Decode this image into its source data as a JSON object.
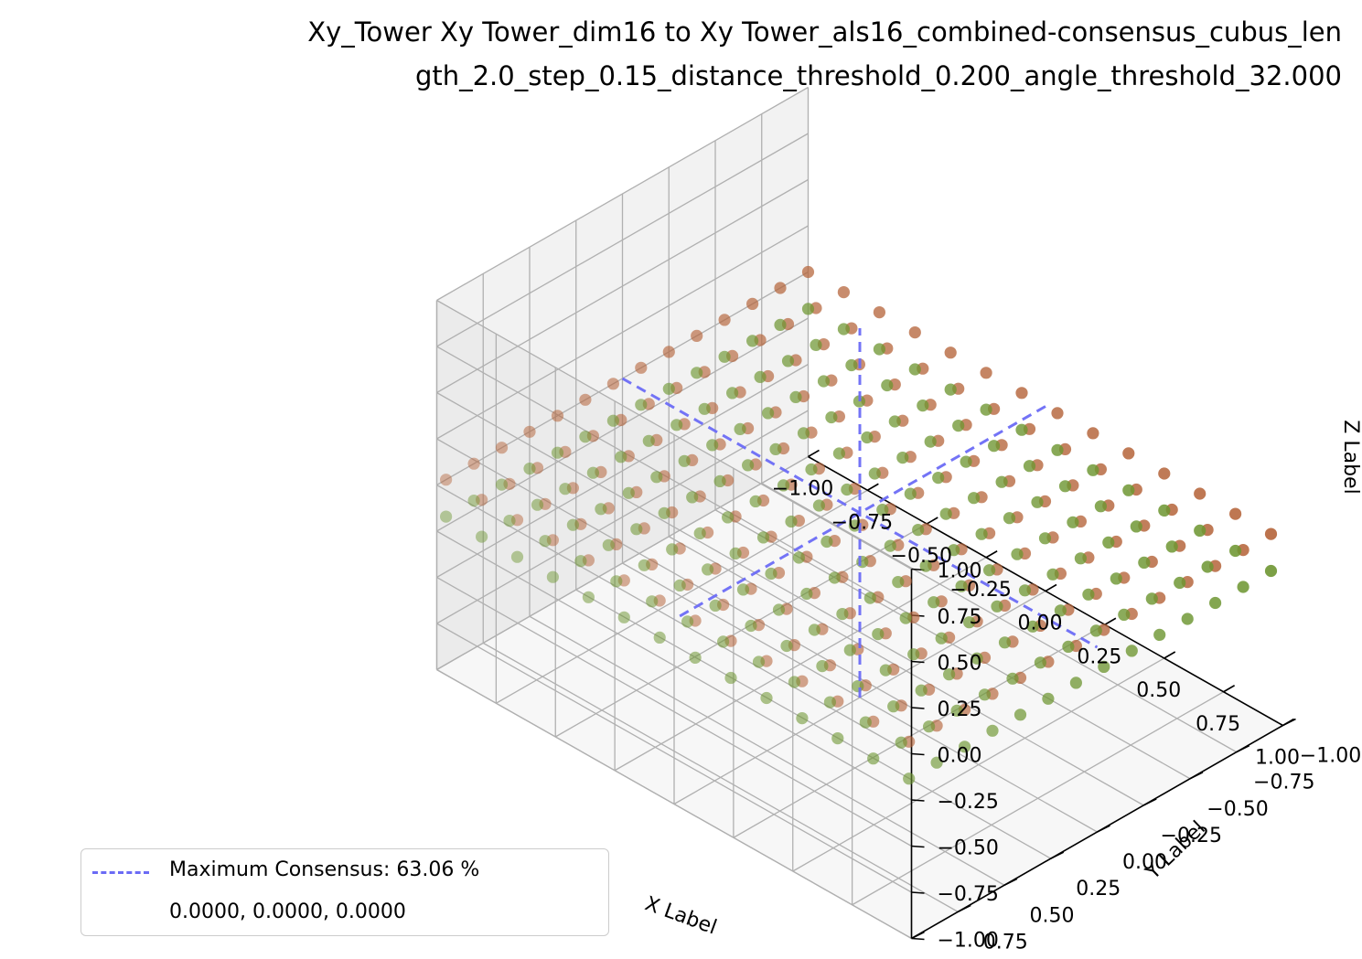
{
  "chart_data": {
    "type": "scatter",
    "title_line1": "Xy_Tower Xy Tower_dim16 to Xy Tower_als16_combined-consensus_cubus_len",
    "title_line2": "gth_2.0_step_0.15_distance_threshold_0.200_angle_threshold_32.000",
    "xlabel": "X Label",
    "ylabel": "Y Label",
    "zlabel": "Z Label",
    "xlim": [
      -1.0,
      1.0
    ],
    "ylim": [
      -1.0,
      1.0
    ],
    "zlim": [
      -1.0,
      1.0
    ],
    "x_ticks": [
      "−1.00",
      "−0.75",
      "−0.50",
      "−0.25",
      "0.00",
      "0.25",
      "0.50",
      "0.75",
      "1.00"
    ],
    "y_ticks": [
      "−1.00",
      "−0.75",
      "−0.50",
      "−0.25",
      "0.00",
      "0.25",
      "0.50",
      "0.75",
      "1.00"
    ],
    "z_ticks": [
      "−1.00",
      "−0.75",
      "−0.50",
      "−0.25",
      "0.00",
      "0.25",
      "0.50",
      "0.75",
      "1.00"
    ],
    "grid": true,
    "series": [
      {
        "kind": "points",
        "color": "#b5643a",
        "grid_min": -1.0,
        "grid_max": 1.0,
        "grid_step": 0.15,
        "z": 0.0
      },
      {
        "kind": "points",
        "color": "#6e9632",
        "grid_min": -1.0,
        "grid_max": 1.0,
        "grid_step": 0.15,
        "z": -0.2
      },
      {
        "kind": "max_consensus_lines",
        "color": "#6b6bf5",
        "center": [
          0.0,
          0.0,
          0.0
        ]
      }
    ],
    "legend": {
      "position": "lower-left",
      "label": "Maximum Consensus: 63.06 %",
      "coords": "0.0000, 0.0000, 0.0000"
    }
  }
}
